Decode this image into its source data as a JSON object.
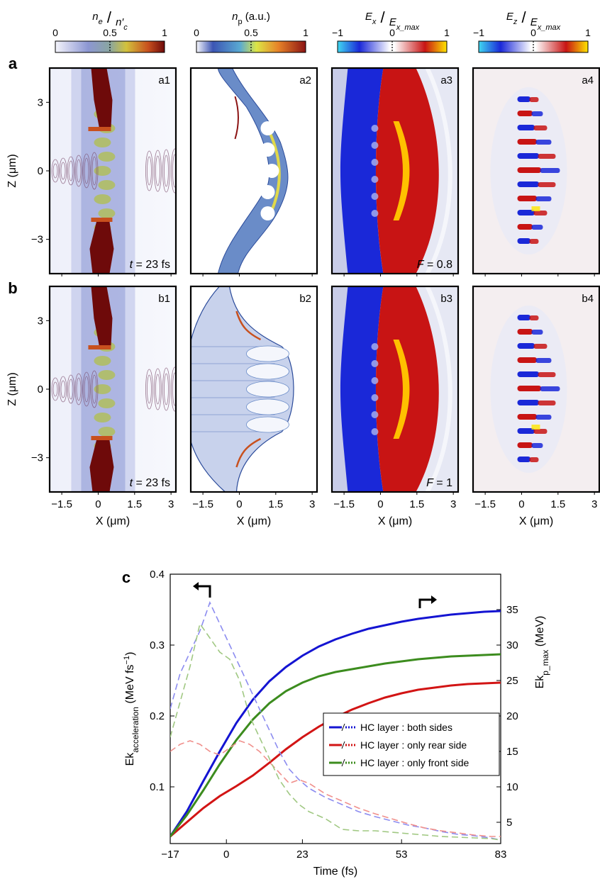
{
  "figure": {
    "row_labels": [
      "a",
      "b",
      "c"
    ],
    "colorbars": [
      {
        "title_main": "n",
        "title_sub": "e",
        "title_den": "n′",
        "title_den_sub": "c",
        "ticks": [
          "0",
          "0.5",
          "1"
        ],
        "colormap": "ne"
      },
      {
        "title": "n",
        "title_sub": "p",
        "title_unit": " (a.u.)",
        "ticks": [
          "0",
          "0.5",
          "1"
        ],
        "colormap": "jet"
      },
      {
        "title_main": "E",
        "title_sub": "x",
        "title_den": "E",
        "title_den_sub": "x_max",
        "ticks": [
          "−1",
          "0",
          "1"
        ],
        "colormap": "diverging"
      },
      {
        "title_main": "E",
        "title_sub": "z",
        "title_den": "E",
        "title_den_sub": "x_max",
        "ticks": [
          "−1",
          "0",
          "1"
        ],
        "colormap": "diverging"
      }
    ],
    "panels": [
      {
        "id": "a1",
        "corner": "t = 23 fs",
        "kind": "ne"
      },
      {
        "id": "a2",
        "corner": "",
        "kind": "np_a"
      },
      {
        "id": "a3",
        "corner": "F = 0.8",
        "kind": "ex"
      },
      {
        "id": "a4",
        "corner": "",
        "kind": "ez"
      },
      {
        "id": "b1",
        "corner": "t = 23 fs",
        "kind": "ne"
      },
      {
        "id": "b2",
        "corner": "",
        "kind": "np_b"
      },
      {
        "id": "b3",
        "corner": "F = 1",
        "kind": "ex"
      },
      {
        "id": "b4",
        "corner": "",
        "kind": "ez"
      }
    ],
    "map_axes": {
      "x_label": "X (μm)",
      "z_label": "Z (μm)",
      "x_ticks": [
        "−1.5",
        "0",
        "1.5",
        "3"
      ],
      "z_ticks": [
        "3",
        "0",
        "−3"
      ],
      "x_range": [
        -2.0,
        3.2
      ],
      "z_range": [
        -4.5,
        4.5
      ]
    }
  },
  "chart_data": {
    "type": "line",
    "panel_label": "c",
    "xlabel": "Time (fs)",
    "ylabel_left": "Ek",
    "ylabel_left_sub": "acceleration",
    "ylabel_left_unit": " (MeV fs",
    "ylabel_left_sup": "−1",
    "ylabel_left_close": ")",
    "ylabel_right": "Ek",
    "ylabel_right_sub": "p_max",
    "ylabel_right_unit": " (MeV)",
    "xlim": [
      -17,
      83
    ],
    "ylim_left": [
      0.02,
      0.4
    ],
    "ylim_right": [
      2,
      40
    ],
    "x_ticks": [
      -17,
      0,
      23,
      53,
      83
    ],
    "y_ticks_left": [
      0.1,
      0.2,
      0.3,
      0.4
    ],
    "y_ticks_right": [
      5,
      10,
      15,
      20,
      25,
      30,
      35
    ],
    "legend": {
      "position": "lower-right",
      "entries": [
        "HC layer : both sides",
        "HC layer : only rear side",
        "HC layer : only front side"
      ]
    },
    "series": [
      {
        "name": "HC layer : both sides",
        "axis": "right",
        "color": "#1414d2",
        "style": "solid",
        "x": [
          -17,
          -12,
          -7,
          -2,
          3,
          8,
          13,
          18,
          23,
          28,
          33,
          38,
          43,
          48,
          53,
          58,
          63,
          68,
          73,
          78,
          83
        ],
        "y": [
          3.0,
          6.5,
          10.8,
          15.0,
          19.0,
          22.3,
          24.9,
          26.9,
          28.5,
          29.8,
          30.8,
          31.6,
          32.3,
          32.8,
          33.3,
          33.7,
          34.0,
          34.3,
          34.5,
          34.7,
          34.8
        ]
      },
      {
        "name": "HC layer : only rear side",
        "axis": "right",
        "color": "#d21414",
        "style": "solid",
        "x": [
          -17,
          -12,
          -7,
          -2,
          3,
          8,
          13,
          18,
          23,
          28,
          33,
          38,
          43,
          48,
          53,
          58,
          63,
          68,
          73,
          78,
          83
        ],
        "y": [
          3.0,
          5.0,
          7.0,
          8.7,
          10.1,
          11.6,
          13.4,
          15.3,
          17.0,
          18.5,
          19.8,
          20.9,
          21.8,
          22.6,
          23.2,
          23.7,
          24.0,
          24.3,
          24.5,
          24.6,
          24.7
        ]
      },
      {
        "name": "HC layer : only front side",
        "axis": "right",
        "color": "#3c8c1e",
        "style": "solid",
        "x": [
          -17,
          -12,
          -7,
          -2,
          3,
          8,
          13,
          18,
          23,
          28,
          33,
          38,
          43,
          48,
          53,
          58,
          63,
          68,
          73,
          78,
          83
        ],
        "y": [
          3.0,
          6.0,
          9.5,
          13.2,
          16.6,
          19.5,
          21.8,
          23.5,
          24.7,
          25.6,
          26.2,
          26.6,
          27.0,
          27.4,
          27.7,
          28.0,
          28.2,
          28.4,
          28.5,
          28.6,
          28.7
        ]
      },
      {
        "name": "HC layer : both sides",
        "axis": "left",
        "color": "#8c8cf0",
        "style": "dashed",
        "x": [
          -17,
          -14,
          -11,
          -8,
          -5,
          -2,
          1,
          4,
          7,
          10,
          13,
          16,
          19,
          22,
          25,
          30,
          35,
          40,
          45,
          50,
          55,
          60,
          65,
          70,
          75,
          80,
          83
        ],
        "y": [
          0.21,
          0.26,
          0.29,
          0.32,
          0.36,
          0.33,
          0.3,
          0.27,
          0.24,
          0.21,
          0.18,
          0.15,
          0.125,
          0.11,
          0.098,
          0.085,
          0.075,
          0.065,
          0.058,
          0.052,
          0.046,
          0.042,
          0.037,
          0.033,
          0.031,
          0.028,
          0.025
        ]
      },
      {
        "name": "HC layer : only rear side",
        "axis": "left",
        "color": "#f0908c",
        "style": "dashed",
        "x": [
          -17,
          -14,
          -11,
          -8,
          -5,
          -2,
          1,
          4,
          7,
          10,
          13,
          16,
          19,
          22,
          25,
          30,
          35,
          40,
          45,
          50,
          55,
          60,
          65,
          70,
          75,
          80,
          83
        ],
        "y": [
          0.15,
          0.16,
          0.165,
          0.16,
          0.15,
          0.145,
          0.155,
          0.165,
          0.16,
          0.15,
          0.135,
          0.12,
          0.105,
          0.11,
          0.105,
          0.09,
          0.08,
          0.07,
          0.062,
          0.055,
          0.048,
          0.042,
          0.038,
          0.035,
          0.032,
          0.03,
          0.03
        ]
      },
      {
        "name": "HC layer : only front side",
        "axis": "left",
        "color": "#a0c882",
        "style": "dashed",
        "x": [
          -17,
          -14,
          -11,
          -8,
          -5,
          -2,
          1,
          4,
          7,
          10,
          13,
          16,
          19,
          22,
          25,
          30,
          35,
          40,
          45,
          50,
          55,
          60,
          65,
          70,
          75,
          80,
          83
        ],
        "y": [
          0.17,
          0.22,
          0.27,
          0.33,
          0.31,
          0.29,
          0.28,
          0.25,
          0.2,
          0.17,
          0.14,
          0.11,
          0.09,
          0.075,
          0.065,
          0.055,
          0.04,
          0.038,
          0.038,
          0.036,
          0.034,
          0.032,
          0.03,
          0.029,
          0.028,
          0.027,
          0.025
        ]
      }
    ],
    "annotations": [
      "left-arrow",
      "right-arrow"
    ]
  }
}
